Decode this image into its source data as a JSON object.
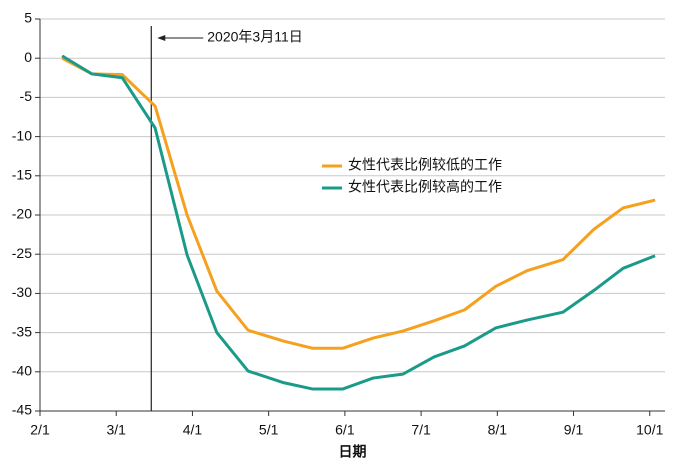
{
  "chart_data": {
    "type": "line",
    "x_label": "日期",
    "x": [
      0.29,
      0.68,
      1.08,
      1.51,
      1.93,
      2.32,
      2.73,
      3.2,
      3.58,
      3.97,
      4.37,
      4.76,
      5.17,
      5.57,
      5.98,
      6.39,
      6.86,
      7.27,
      7.65,
      8.07
    ],
    "series": [
      {
        "name": "女性代表比例较低的工作",
        "color": "#f5a01e",
        "values": [
          0,
          -2.0,
          -2.1,
          -6.1,
          -20,
          -29.7,
          -34.7,
          -36.1,
          -37,
          -37,
          -35.7,
          -34.8,
          -33.5,
          -32.1,
          -29.1,
          -27.1,
          -25.7,
          -21.8,
          -19.1,
          -18.1
        ]
      },
      {
        "name": "女性代表比例较高的工作",
        "color": "#1a9b8a",
        "values": [
          0.3,
          -2.0,
          -2.5,
          -8.9,
          -25.1,
          -35,
          -39.9,
          -41.4,
          -42.2,
          -42.2,
          -40.8,
          -40.3,
          -38.1,
          -36.7,
          -34.4,
          -33.4,
          -32.4,
          -29.6,
          -26.8,
          -25.2
        ]
      }
    ],
    "xlim": [
      0,
      8.2
    ],
    "xticks": [
      {
        "value": 0,
        "label": "2/1"
      },
      {
        "value": 1,
        "label": "3/1"
      },
      {
        "value": 2,
        "label": "4/1"
      },
      {
        "value": 3,
        "label": "5/1"
      },
      {
        "value": 4,
        "label": "6/1"
      },
      {
        "value": 5,
        "label": "7/1"
      },
      {
        "value": 6,
        "label": "8/1"
      },
      {
        "value": 7,
        "label": "9/1"
      },
      {
        "value": 8,
        "label": "10/1"
      }
    ],
    "ylim": [
      -45,
      5
    ],
    "yticks": [
      -45,
      -40,
      -35,
      -30,
      -25,
      -20,
      -15,
      -10,
      -5,
      0,
      5
    ],
    "grid": true,
    "annotation": {
      "text": "2020年3月11日",
      "x": 1.46
    },
    "legend": "center-right"
  }
}
